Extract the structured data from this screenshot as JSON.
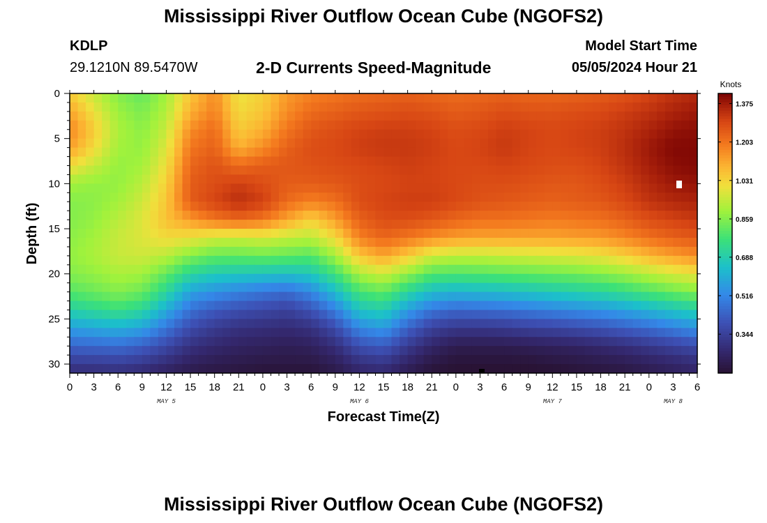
{
  "header": {
    "title": "Mississippi River Outflow Ocean Cube (NGOFS2)",
    "station_id": "KDLP",
    "station_coords": "29.1210N  89.5470W",
    "plot_title": "2-D Currents Speed-Magnitude",
    "model_start_label": "Model Start Time",
    "model_start_value": "05/05/2024 Hour 21"
  },
  "footer": {
    "title": "Mississippi River Outflow Ocean Cube (NGOFS2)"
  },
  "chart_data": {
    "type": "heatmap",
    "title": "2-D Currents Speed-Magnitude",
    "xlabel": "Forecast Time(Z)",
    "ylabel": "Depth (ft)",
    "xlim": [
      0,
      78
    ],
    "ylim": [
      0,
      31
    ],
    "x_ticks": [
      0,
      3,
      6,
      9,
      12,
      15,
      18,
      21,
      24,
      27,
      30,
      33,
      36,
      39,
      42,
      45,
      48,
      51,
      54,
      57,
      60,
      63,
      66,
      69,
      72,
      75,
      78
    ],
    "x_tick_labels": [
      "0",
      "3",
      "6",
      "9",
      "12",
      "15",
      "18",
      "21",
      "0",
      "3",
      "6",
      "9",
      "12",
      "15",
      "18",
      "21",
      "0",
      "3",
      "6",
      "9",
      "12",
      "15",
      "18",
      "21",
      "0",
      "3",
      "6"
    ],
    "y_ticks": [
      0,
      5,
      10,
      15,
      20,
      25,
      30
    ],
    "y_tick_labels": [
      "0",
      "5",
      "10",
      "15",
      "20",
      "25",
      "30"
    ],
    "date_labels": [
      {
        "x": 12,
        "text": "MAY 5"
      },
      {
        "x": 36,
        "text": "MAY 6"
      },
      {
        "x": 60,
        "text": "MAY 7"
      },
      {
        "x": 75,
        "text": "MAY 8"
      }
    ],
    "colorbar": {
      "title": "Knots",
      "min": 0.17,
      "max": 1.42,
      "ticks": [
        0.344,
        0.516,
        0.688,
        0.859,
        1.031,
        1.203,
        1.375
      ],
      "tick_labels": [
        "0.344",
        "0.516",
        "0.688",
        "0.859",
        "1.031",
        "1.203",
        "1.375"
      ]
    },
    "grid": {
      "hours": [
        0,
        3,
        6,
        9,
        12,
        15,
        18,
        21,
        24,
        27,
        30,
        33,
        36,
        39,
        42,
        45,
        48,
        51,
        54,
        57,
        60,
        63,
        66,
        69,
        72,
        75,
        78
      ],
      "depths": [
        0,
        2,
        4,
        6,
        8,
        10,
        12,
        14,
        16,
        18,
        20,
        22,
        24,
        26,
        28,
        30,
        31
      ],
      "speeds": [
        [
          1.05,
          0.95,
          0.86,
          0.82,
          0.9,
          1.06,
          1.16,
          1.0,
          1.04,
          1.14,
          1.18,
          1.2,
          1.22,
          1.23,
          1.24,
          1.23,
          1.22,
          1.23,
          1.24,
          1.23,
          1.23,
          1.24,
          1.25,
          1.27,
          1.3,
          1.33,
          1.35
        ],
        [
          1.12,
          1.0,
          0.89,
          0.85,
          0.92,
          1.1,
          1.18,
          1.02,
          1.06,
          1.16,
          1.22,
          1.24,
          1.26,
          1.27,
          1.28,
          1.27,
          1.25,
          1.26,
          1.28,
          1.27,
          1.27,
          1.28,
          1.29,
          1.31,
          1.33,
          1.36,
          1.38
        ],
        [
          1.17,
          1.05,
          0.91,
          0.87,
          0.95,
          1.16,
          1.22,
          1.05,
          1.1,
          1.2,
          1.26,
          1.28,
          1.3,
          1.31,
          1.31,
          1.3,
          1.28,
          1.29,
          1.31,
          1.3,
          1.29,
          1.3,
          1.31,
          1.33,
          1.36,
          1.39,
          1.4
        ],
        [
          1.13,
          1.02,
          0.9,
          0.88,
          0.98,
          1.2,
          1.24,
          1.1,
          1.16,
          1.24,
          1.28,
          1.29,
          1.31,
          1.32,
          1.32,
          1.31,
          1.29,
          1.3,
          1.32,
          1.3,
          1.29,
          1.3,
          1.31,
          1.34,
          1.38,
          1.41,
          1.41
        ],
        [
          1.02,
          0.95,
          0.88,
          0.9,
          1.01,
          1.23,
          1.27,
          1.22,
          1.25,
          1.26,
          1.27,
          1.28,
          1.29,
          1.3,
          1.31,
          1.3,
          1.29,
          1.29,
          1.3,
          1.29,
          1.28,
          1.28,
          1.3,
          1.33,
          1.37,
          1.4,
          1.41
        ],
        [
          0.9,
          0.88,
          0.88,
          0.93,
          1.04,
          1.25,
          1.28,
          1.31,
          1.28,
          1.25,
          1.25,
          1.26,
          1.28,
          1.29,
          1.3,
          1.3,
          1.29,
          1.28,
          1.28,
          1.27,
          1.26,
          1.26,
          1.28,
          1.31,
          1.35,
          1.38,
          1.39
        ],
        [
          0.86,
          0.87,
          0.9,
          0.96,
          1.06,
          1.25,
          1.3,
          1.34,
          1.31,
          1.22,
          1.18,
          1.21,
          1.28,
          1.3,
          1.31,
          1.31,
          1.29,
          1.27,
          1.26,
          1.25,
          1.24,
          1.25,
          1.26,
          1.29,
          1.33,
          1.35,
          1.36
        ],
        [
          0.86,
          0.88,
          0.93,
          0.98,
          1.07,
          1.14,
          1.2,
          1.23,
          1.2,
          1.12,
          1.04,
          1.13,
          1.24,
          1.28,
          1.28,
          1.26,
          1.23,
          1.21,
          1.21,
          1.2,
          1.19,
          1.2,
          1.21,
          1.24,
          1.28,
          1.3,
          1.32
        ],
        [
          0.87,
          0.9,
          0.95,
          0.98,
          1.02,
          1.0,
          0.96,
          0.95,
          0.97,
          0.94,
          0.93,
          1.02,
          1.18,
          1.23,
          1.2,
          1.16,
          1.13,
          1.12,
          1.12,
          1.12,
          1.12,
          1.13,
          1.14,
          1.17,
          1.21,
          1.24,
          1.26
        ],
        [
          0.88,
          0.91,
          0.95,
          0.96,
          0.93,
          0.86,
          0.82,
          0.82,
          0.83,
          0.82,
          0.8,
          0.9,
          1.06,
          1.12,
          1.05,
          0.96,
          0.94,
          0.94,
          0.95,
          0.96,
          0.97,
          0.98,
          1.0,
          1.04,
          1.09,
          1.13,
          1.16
        ],
        [
          0.86,
          0.88,
          0.91,
          0.9,
          0.82,
          0.72,
          0.68,
          0.67,
          0.66,
          0.65,
          0.67,
          0.77,
          0.91,
          0.96,
          0.88,
          0.8,
          0.79,
          0.8,
          0.81,
          0.82,
          0.83,
          0.84,
          0.86,
          0.89,
          0.93,
          0.97,
          1.0
        ],
        [
          0.8,
          0.83,
          0.86,
          0.83,
          0.72,
          0.58,
          0.54,
          0.51,
          0.48,
          0.46,
          0.52,
          0.64,
          0.78,
          0.82,
          0.72,
          0.64,
          0.62,
          0.63,
          0.64,
          0.66,
          0.68,
          0.7,
          0.72,
          0.75,
          0.79,
          0.83,
          0.86
        ],
        [
          0.7,
          0.73,
          0.76,
          0.72,
          0.6,
          0.47,
          0.42,
          0.39,
          0.37,
          0.35,
          0.4,
          0.5,
          0.66,
          0.69,
          0.57,
          0.48,
          0.45,
          0.46,
          0.47,
          0.49,
          0.51,
          0.53,
          0.55,
          0.58,
          0.62,
          0.66,
          0.7
        ],
        [
          0.57,
          0.59,
          0.61,
          0.58,
          0.48,
          0.38,
          0.33,
          0.3,
          0.29,
          0.28,
          0.3,
          0.38,
          0.52,
          0.56,
          0.44,
          0.35,
          0.32,
          0.32,
          0.33,
          0.35,
          0.36,
          0.38,
          0.4,
          0.43,
          0.46,
          0.5,
          0.54
        ],
        [
          0.44,
          0.45,
          0.46,
          0.43,
          0.37,
          0.3,
          0.27,
          0.25,
          0.24,
          0.23,
          0.24,
          0.29,
          0.39,
          0.42,
          0.33,
          0.26,
          0.22,
          0.22,
          0.22,
          0.23,
          0.24,
          0.25,
          0.27,
          0.29,
          0.32,
          0.35,
          0.38
        ],
        [
          0.33,
          0.33,
          0.34,
          0.32,
          0.28,
          0.24,
          0.22,
          0.21,
          0.2,
          0.2,
          0.2,
          0.23,
          0.29,
          0.31,
          0.25,
          0.2,
          0.18,
          0.18,
          0.18,
          0.18,
          0.19,
          0.2,
          0.21,
          0.22,
          0.24,
          0.26,
          0.28
        ],
        [
          0.28,
          0.28,
          0.29,
          0.27,
          0.24,
          0.21,
          0.2,
          0.19,
          0.18,
          0.18,
          0.18,
          0.21,
          0.26,
          0.27,
          0.22,
          0.18,
          0.17,
          0.17,
          0.17,
          0.17,
          0.17,
          0.18,
          0.19,
          0.2,
          0.22,
          0.24,
          0.26
        ]
      ]
    }
  }
}
